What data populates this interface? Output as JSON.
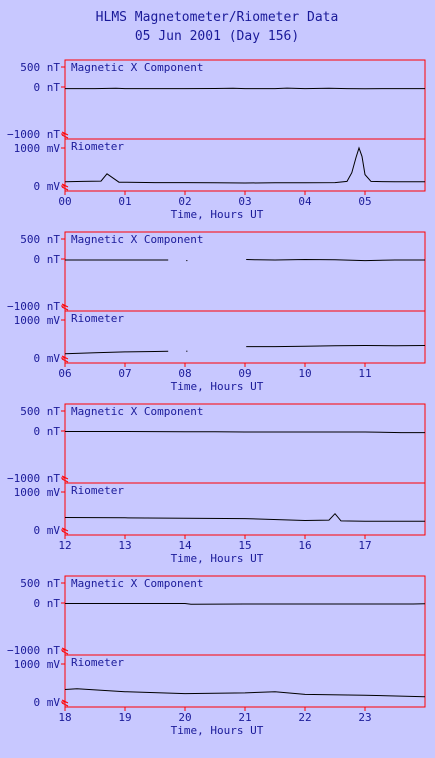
{
  "title_line1": "HLMS Magnetometer/Riometer Data",
  "title_line2": "05 Jun 2001 (Day 156)",
  "colors": {
    "background": "#c8c8ff",
    "text": "#1a1a99",
    "frame": "#ff0000",
    "trace": "#000000"
  },
  "chart_data": [
    {
      "type": "line",
      "hours": [
        0,
        6
      ],
      "xticks": [
        "00",
        "01",
        "02",
        "03",
        "04",
        "05"
      ],
      "xlabel": "Time, Hours UT",
      "panels": [
        {
          "label": "Magnetic X Component",
          "ytick_labels": [
            "500 nT",
            "0 nT",
            "−1000 nT"
          ],
          "ytick_values": [
            500,
            0,
            -1000
          ],
          "series": [
            {
              "x": [
                0,
                0.5,
                0.85,
                1.0,
                1.5,
                2.0,
                2.5,
                2.8,
                3.0,
                3.5,
                3.7,
                4.0,
                4.4,
                4.7,
                5.0,
                5.5,
                6.0
              ],
              "y": [
                -30,
                -30,
                -25,
                -30,
                -30,
                -30,
                -28,
                -25,
                -30,
                -30,
                -22,
                -30,
                -25,
                -30,
                -32,
                -30,
                -30
              ]
            }
          ]
        },
        {
          "label": "Riometer",
          "ytick_labels": [
            "1000 mV",
            "0 mV"
          ],
          "ytick_values": [
            1000,
            0
          ],
          "series": [
            {
              "x": [
                0,
                0.3,
                0.6,
                0.7,
                0.9,
                1.5,
                2.0,
                2.5,
                3.0,
                3.5,
                4.0,
                4.5,
                4.7,
                4.78,
                4.85,
                4.9,
                4.95,
                5.0,
                5.1,
                5.5,
                6.0
              ],
              "y": [
                110,
                120,
                130,
                320,
                100,
                90,
                90,
                85,
                80,
                85,
                85,
                90,
                120,
                350,
                750,
                1000,
                780,
                300,
                120,
                110,
                110
              ]
            }
          ]
        }
      ]
    },
    {
      "type": "line",
      "hours": [
        6,
        12
      ],
      "xticks": [
        "06",
        "07",
        "08",
        "09",
        "10",
        "11"
      ],
      "xlabel": "Time, Hours UT",
      "panels": [
        {
          "label": "Magnetic X Component",
          "ytick_labels": [
            "500 nT",
            "0 nT",
            "−1000 nT"
          ],
          "ytick_values": [
            500,
            0,
            -1000
          ],
          "series": [
            {
              "x": [
                6,
                6.5,
                7.0,
                7.5,
                7.72
              ],
              "y": [
                -20,
                -20,
                -20,
                -20,
                -20
              ]
            },
            {
              "x": [
                8.02,
                8.04
              ],
              "y": [
                -30,
                -30
              ]
            },
            {
              "x": [
                9.02,
                9.2,
                9.5,
                10.0,
                10.5,
                11.0,
                11.5,
                12.0
              ],
              "y": [
                -10,
                -15,
                -20,
                -10,
                -15,
                -30,
                -20,
                -20
              ]
            }
          ]
        },
        {
          "label": "Riometer",
          "ytick_labels": [
            "1000 mV",
            "0 mV"
          ],
          "ytick_values": [
            1000,
            0
          ],
          "series": [
            {
              "x": [
                6,
                6.5,
                7.0,
                7.5,
                7.72
              ],
              "y": [
                110,
                140,
                160,
                170,
                180
              ]
            },
            {
              "x": [
                8.02,
                8.04
              ],
              "y": [
                180,
                180
              ]
            },
            {
              "x": [
                9.02,
                9.5,
                10.0,
                10.5,
                11.0,
                11.5,
                12.0
              ],
              "y": [
                300,
                300,
                310,
                320,
                330,
                320,
                330
              ]
            }
          ]
        }
      ]
    },
    {
      "type": "line",
      "hours": [
        12,
        18
      ],
      "xticks": [
        "12",
        "13",
        "14",
        "15",
        "16",
        "17"
      ],
      "xlabel": "Time, Hours UT",
      "panels": [
        {
          "label": "Magnetic X Component",
          "ytick_labels": [
            "500 nT",
            "0 nT",
            "−1000 nT"
          ],
          "ytick_values": [
            500,
            0,
            -1000
          ],
          "series": [
            {
              "x": [
                12,
                13,
                14,
                14.5,
                15,
                16,
                16.5,
                17,
                17.6,
                18
              ],
              "y": [
                -10,
                -10,
                -15,
                -15,
                -20,
                -20,
                -20,
                -20,
                -30,
                -30
              ]
            }
          ]
        },
        {
          "label": "Riometer",
          "ytick_labels": [
            "1000 mV",
            "0 mV"
          ],
          "ytick_values": [
            1000,
            0
          ],
          "series": [
            {
              "x": [
                12,
                13,
                14,
                15,
                16,
                16.4,
                16.5,
                16.6,
                17,
                17.5,
                18
              ],
              "y": [
                330,
                320,
                310,
                300,
                250,
                260,
                430,
                240,
                230,
                230,
                230
              ]
            }
          ]
        }
      ]
    },
    {
      "type": "line",
      "hours": [
        18,
        24
      ],
      "xticks": [
        "18",
        "19",
        "20",
        "21",
        "22",
        "23"
      ],
      "xlabel": "Time, Hours UT",
      "panels": [
        {
          "label": "Magnetic X Component",
          "ytick_labels": [
            "500 nT",
            "0 nT",
            "−1000 nT"
          ],
          "ytick_values": [
            500,
            0,
            -1000
          ],
          "series": [
            {
              "x": [
                18,
                19,
                20,
                20.1,
                21,
                22,
                23,
                23.8,
                24
              ],
              "y": [
                -10,
                -10,
                -10,
                -25,
                -20,
                -20,
                -20,
                -20,
                -15
              ]
            }
          ]
        },
        {
          "label": "Riometer",
          "ytick_labels": [
            "1000 mV",
            "0 mV"
          ],
          "ytick_values": [
            1000,
            0
          ],
          "series": [
            {
              "x": [
                18,
                18.2,
                19,
                20,
                21,
                21.5,
                22,
                23,
                24
              ],
              "y": [
                330,
                350,
                270,
                220,
                240,
                270,
                200,
                180,
                140
              ]
            }
          ]
        }
      ]
    }
  ]
}
